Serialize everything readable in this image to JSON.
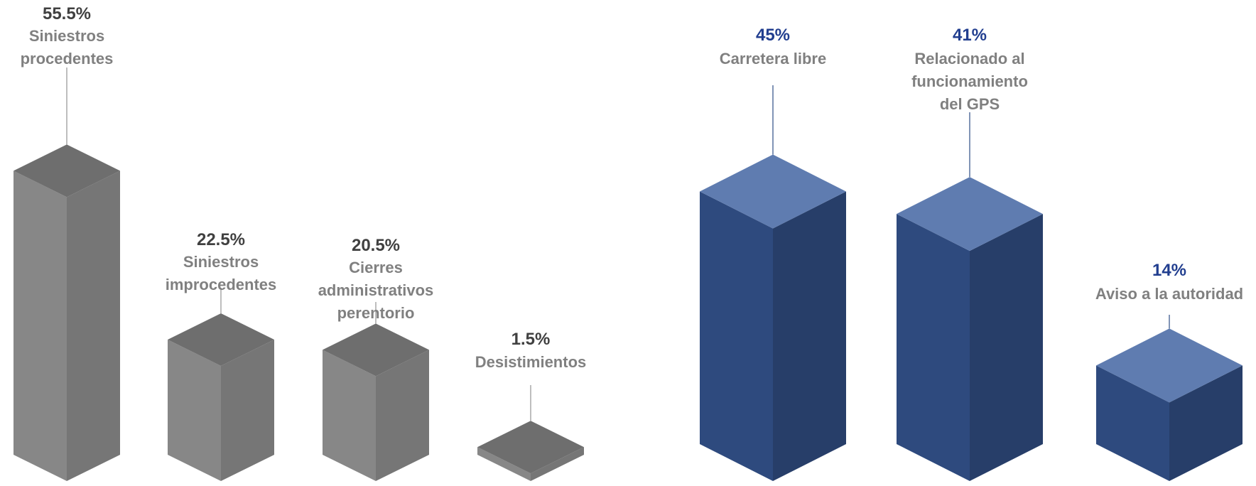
{
  "chart_data": [
    {
      "type": "bar",
      "style": "3d-isometric",
      "categories": [
        "Siniestros procedentes",
        "Siniestros improcedentes",
        "Cierres administrativos perentorio",
        "Desistimientos"
      ],
      "category_lines": [
        [
          "Siniestros",
          "procedentes"
        ],
        [
          "Siniestros",
          "improcedentes"
        ],
        [
          "Cierres",
          "administrativos",
          "perentorio"
        ],
        [
          "Desistimientos"
        ]
      ],
      "values": [
        55.5,
        22.5,
        20.5,
        1.5
      ],
      "value_labels": [
        "55.5%",
        "22.5%",
        "20.5%",
        "1.5%"
      ],
      "unit": "%",
      "colors": {
        "top": "#6e6e6e",
        "left": "#878787",
        "right": "#767676",
        "value_text": "#404040",
        "leader": "#9a9a9a"
      }
    },
    {
      "type": "bar",
      "style": "3d-isometric",
      "categories": [
        "Carretera libre",
        "Relacionado al funcionamiento del GPS",
        "Aviso a la autoridad"
      ],
      "category_lines": [
        [
          "Carretera libre"
        ],
        [
          "Relacionado al",
          "funcionamiento",
          "del GPS"
        ],
        [
          "Aviso a la autoridad"
        ]
      ],
      "values": [
        45,
        41,
        14
      ],
      "value_labels": [
        "45%",
        "41%",
        "14%"
      ],
      "unit": "%",
      "colors": {
        "top": "#5f7cb0",
        "left": "#2e4a7e",
        "right": "#273e69",
        "value_text": "#213e8f",
        "leader": "#3d5a8e"
      }
    }
  ]
}
